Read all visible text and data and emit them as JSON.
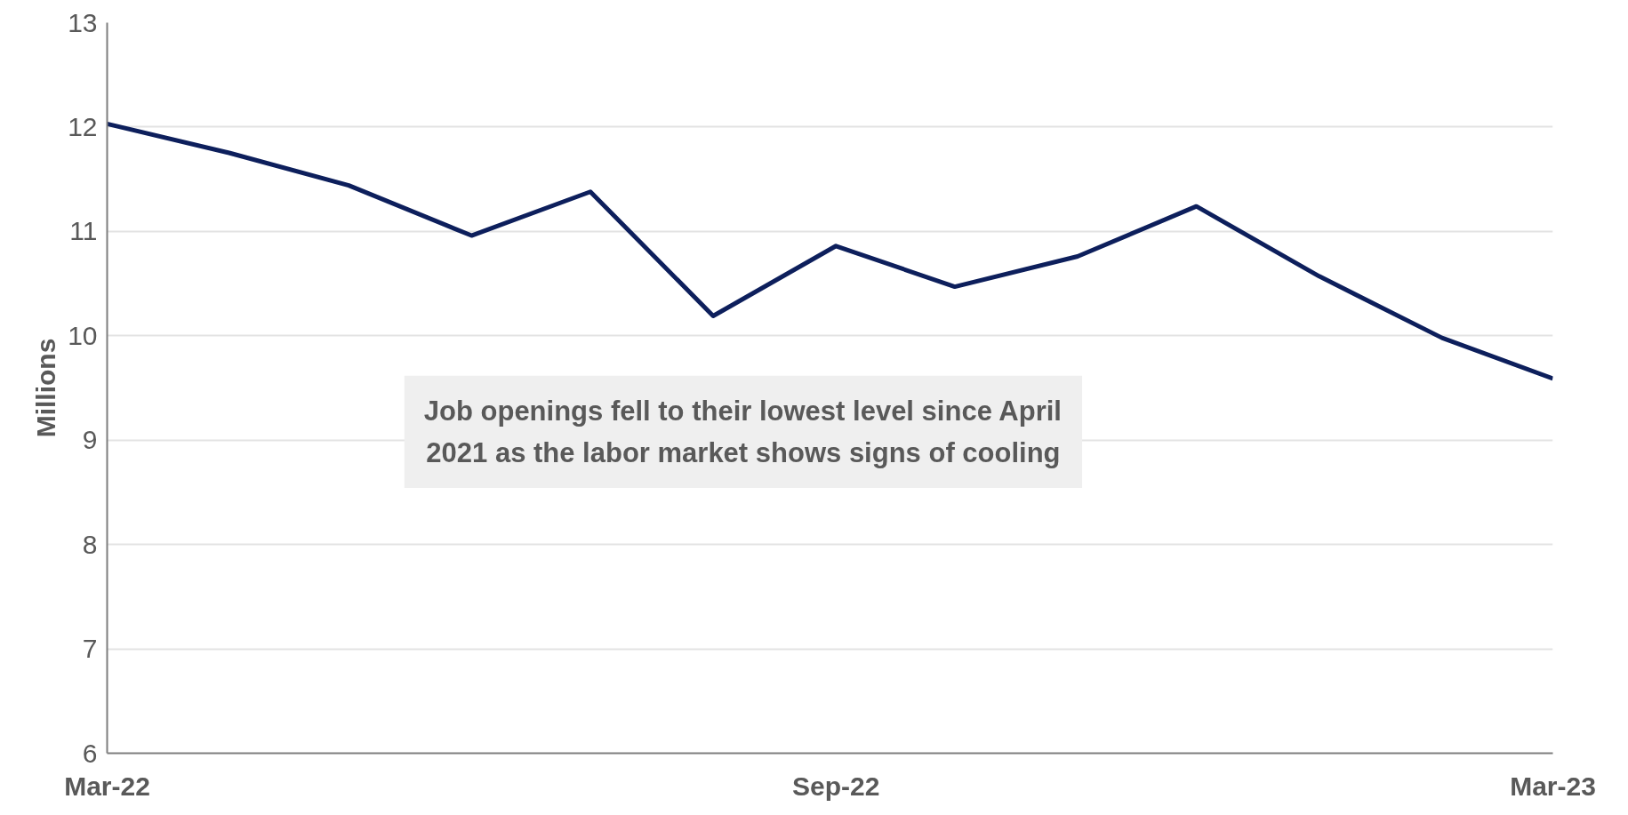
{
  "chart_data": {
    "type": "line",
    "ylabel": "Millions",
    "x": [
      "2022-03",
      "2022-04",
      "2022-05",
      "2022-06",
      "2022-07",
      "2022-08",
      "2022-09",
      "2022-10",
      "2022-11",
      "2022-12",
      "2023-01",
      "2023-02",
      "2023-03"
    ],
    "series": [
      {
        "color": "#0d1f5c",
        "values": [
          12.03,
          11.75,
          11.44,
          10.96,
          11.38,
          10.19,
          10.86,
          10.47,
          10.76,
          11.24,
          10.57,
          9.98,
          9.59
        ]
      }
    ],
    "xlim": [
      "2022-03",
      "2023-03"
    ],
    "xticks": [
      {
        "value": "2022-03",
        "label": "Mar-22"
      },
      {
        "value": "2022-09",
        "label": "Sep-22"
      },
      {
        "value": "2023-03",
        "label": "Mar-23"
      }
    ],
    "ylim": [
      6,
      13
    ],
    "yticks": [
      6,
      7,
      8,
      9,
      10,
      11,
      12,
      13
    ],
    "grid": "y",
    "marker": "none",
    "line_style": "solid",
    "annotations": [
      "Job openings fell to their lowest level since April 2021 as the labor market shows signs of cooling"
    ]
  }
}
